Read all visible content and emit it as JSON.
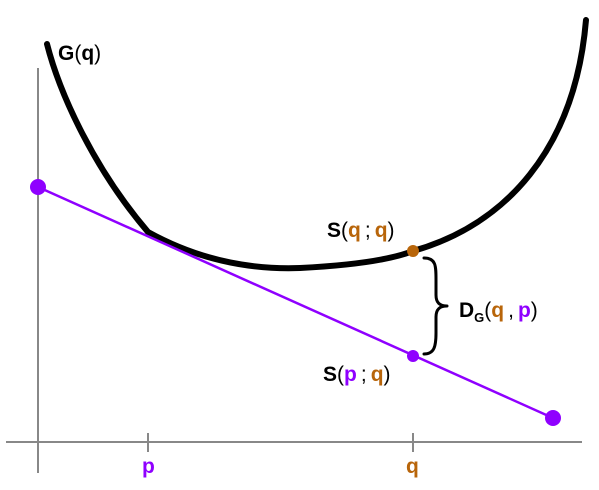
{
  "diagram": {
    "curve_label": {
      "name": "G",
      "arg": "q"
    },
    "point_on_curve_label": {
      "name": "S",
      "arg1": "q",
      "sep": ";",
      "arg2": "q"
    },
    "point_on_line_label": {
      "name": "S",
      "arg1": "p",
      "sep": ";",
      "arg2": "q"
    },
    "divergence_label": {
      "name": "D",
      "sub": "G",
      "arg1": "q",
      "sep": ",",
      "arg2": "p"
    },
    "x_ticks": {
      "p": "p",
      "q": "q"
    }
  },
  "colors": {
    "curve": "#000000",
    "tangent_line": "#8f00ff",
    "p_color": "#8f00ff",
    "q_color": "#b8650a",
    "axis": "#888888"
  }
}
